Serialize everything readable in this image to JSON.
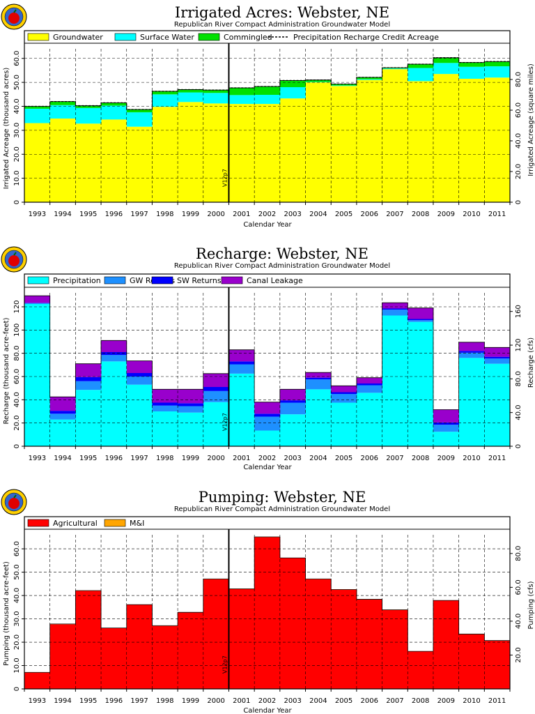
{
  "chart_data": [
    {
      "type": "area",
      "title": "Irrigated Acres: Webster, NE",
      "subtitle": "Republican River Compact Administration Groundwater Model",
      "xlabel": "Calendar Year",
      "ylabel": "Irrigated Acreage (thousand acres)",
      "ylabel_right": "Irrigated Acreage (square miles)",
      "categories": [
        "1993",
        "1994",
        "1995",
        "1996",
        "1997",
        "1998",
        "1999",
        "2000",
        "2001",
        "2002",
        "2003",
        "2004",
        "2005",
        "2006",
        "2007",
        "2008",
        "2009",
        "2010",
        "2011"
      ],
      "ylim": [
        0,
        64
      ],
      "yticks": [
        "0",
        "10.0",
        "20.0",
        "30.0",
        "40.0",
        "50.0",
        "60.0"
      ],
      "ytick_values": [
        0,
        10,
        20,
        30,
        40,
        50,
        60
      ],
      "ylim_right_ticks": [
        "0",
        "20.0",
        "40.0",
        "60.0",
        "80.0"
      ],
      "ytick_right_values": [
        0,
        12.8,
        25.6,
        38.4,
        51.2
      ],
      "grid": true,
      "legend_position": "top",
      "stack_colors": [
        "#ffff00",
        "#00ffff",
        "#00e000"
      ],
      "series": [
        {
          "name": "Groundwater",
          "values": [
            33.0,
            34.9,
            32.8,
            34.5,
            31.5,
            39.8,
            41.8,
            41.2,
            41.0,
            41.0,
            43.3,
            50.0,
            48.5,
            51.0,
            55.5,
            50.5,
            53.5,
            51.5,
            52.0
          ]
        },
        {
          "name": "Surface Water",
          "values": [
            6.0,
            5.6,
            6.5,
            5.8,
            6.0,
            5.2,
            4.0,
            4.4,
            3.7,
            3.8,
            4.7,
            0.2,
            0.2,
            0.3,
            0.3,
            5.5,
            4.6,
            5.0,
            4.7
          ]
        },
        {
          "name": "Commingled",
          "values": [
            1.0,
            1.5,
            1.0,
            1.2,
            1.2,
            1.3,
            1.2,
            1.2,
            3.0,
            3.5,
            2.8,
            0.8,
            0.6,
            0.8,
            0.3,
            1.6,
            2.2,
            1.8,
            2.0
          ]
        }
      ],
      "line_series": {
        "name": "Precipitation Recharge Credit Acreage",
        "values": [
          40.0,
          42.0,
          40.3,
          41.5,
          38.7,
          46.3,
          47.0,
          46.8,
          47.7,
          48.3,
          50.8,
          51.0,
          49.3,
          52.1,
          56.1,
          57.6,
          60.3,
          58.3,
          58.7
        ]
      },
      "marker_label": "V12p7"
    },
    {
      "type": "area",
      "title": "Recharge: Webster, NE",
      "subtitle": "Republican River Compact Administration Groundwater Model",
      "xlabel": "Calendar Year",
      "ylabel": "Recharge (thousand acre-feet)",
      "ylabel_right": "Recharge (cfs)",
      "categories": [
        "1993",
        "1994",
        "1995",
        "1996",
        "1997",
        "1998",
        "1999",
        "2000",
        "2001",
        "2002",
        "2003",
        "2004",
        "2005",
        "2006",
        "2007",
        "2008",
        "2009",
        "2010",
        "2011"
      ],
      "ylim": [
        0,
        132
      ],
      "yticks": [
        "0",
        "20.0",
        "40.0",
        "60.0",
        "80.0",
        "100",
        "120"
      ],
      "ytick_values": [
        0,
        20,
        40,
        60,
        80,
        100,
        120
      ],
      "ylim_right_ticks": [
        "0",
        "40.0",
        "80.0",
        "120",
        "160"
      ],
      "ytick_right_values": [
        0,
        29,
        58,
        87,
        116
      ],
      "grid": true,
      "legend_position": "top",
      "stack_colors": [
        "#00ffff",
        "#1e90ff",
        "#0000ff",
        "#9900cc"
      ],
      "series": [
        {
          "name": "Precipitation",
          "values": [
            122.4,
            23.0,
            48.5,
            73.0,
            53.0,
            30.0,
            29.0,
            38.0,
            62.5,
            13.5,
            27.5,
            49.0,
            37.5,
            46.0,
            112.5,
            107.0,
            12.5,
            76.0,
            71.0
          ]
        },
        {
          "name": "GW Returns",
          "values": [
            0.7,
            5.0,
            7.5,
            5.5,
            7.0,
            5.0,
            5.5,
            9.5,
            8.0,
            12.0,
            10.0,
            8.5,
            7.5,
            6.5,
            5.0,
            1.5,
            6.0,
            4.5,
            4.5
          ]
        },
        {
          "name": "SW Returns",
          "values": [
            0.3,
            2.5,
            3.5,
            2.5,
            3.0,
            2.5,
            2.5,
            3.5,
            2.5,
            2.5,
            2.0,
            1.5,
            1.5,
            1.5,
            1.0,
            1.0,
            2.0,
            1.5,
            1.5
          ]
        },
        {
          "name": "Canal Leakage",
          "values": [
            6.1,
            12.0,
            11.5,
            10.0,
            10.5,
            11.5,
            12.0,
            11.5,
            10.0,
            10.0,
            9.5,
            4.5,
            5.5,
            5.0,
            5.0,
            9.5,
            11.0,
            7.5,
            8.0
          ]
        }
      ],
      "marker_label": "V12p7"
    },
    {
      "type": "area",
      "title": "Pumping: Webster, NE",
      "subtitle": "Republican River Compact Administration Groundwater Model",
      "xlabel": "Calendar Year",
      "ylabel": "Pumping (thousand acre-feet)",
      "ylabel_right": "Pumping (cfs)",
      "categories": [
        "1993",
        "1994",
        "1995",
        "1996",
        "1997",
        "1998",
        "1999",
        "2000",
        "2001",
        "2002",
        "2003",
        "2004",
        "2005",
        "2006",
        "2007",
        "2008",
        "2009",
        "2010",
        "2011"
      ],
      "ylim": [
        0,
        66
      ],
      "yticks": [
        "0",
        "10.0",
        "20.0",
        "30.0",
        "40.0",
        "50.0",
        "60.0"
      ],
      "ytick_values": [
        0,
        10,
        20,
        30,
        40,
        50,
        60
      ],
      "ylim_right_ticks": [
        "20.0",
        "40.0",
        "60.0",
        "80.0"
      ],
      "ytick_right_values": [
        14.5,
        29,
        43.5,
        58
      ],
      "grid": true,
      "legend_position": "top",
      "stack_colors": [
        "#ff0000",
        "#ffa500"
      ],
      "series": [
        {
          "name": "Agricultural",
          "values": [
            7.0,
            27.7,
            42.0,
            26.0,
            36.0,
            27.0,
            32.7,
            47.0,
            42.8,
            65.0,
            56.0,
            47.0,
            42.5,
            38.3,
            33.8,
            16.0,
            37.8,
            23.4,
            20.6
          ]
        },
        {
          "name": "M&I",
          "values": [
            0.1,
            0.1,
            0.1,
            0.1,
            0.1,
            0.1,
            0.1,
            0.1,
            0.1,
            0.1,
            0.1,
            0.1,
            0.1,
            0.1,
            0.1,
            0.1,
            0.1,
            0.1,
            0.1
          ]
        }
      ],
      "marker_label": "V12p7"
    }
  ]
}
